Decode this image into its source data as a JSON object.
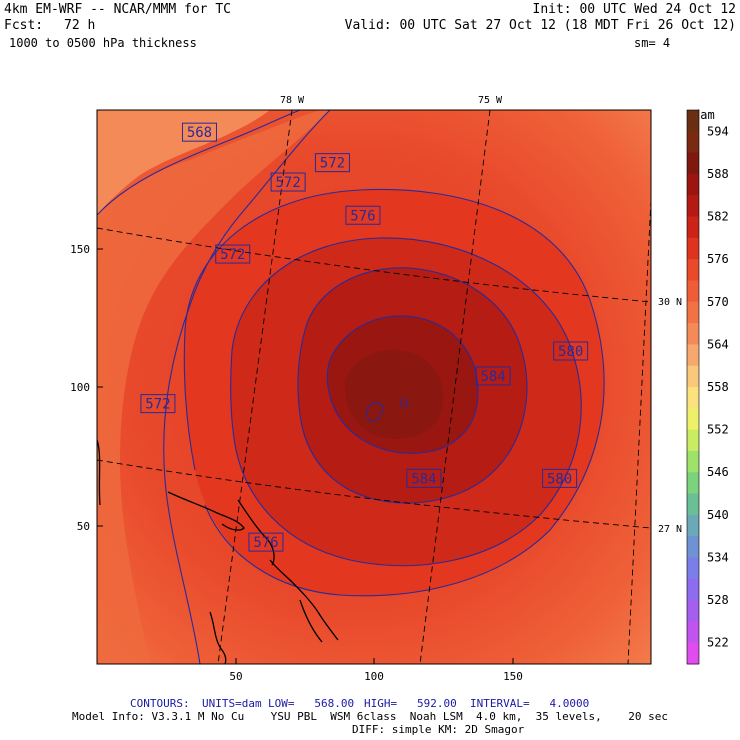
{
  "header": {
    "model": "4km EM-WRF -- NCAR/MMM for TC",
    "init": "Init: 00 UTC Wed 24 Oct 12",
    "fcst_label": "Fcst:",
    "fcst_value": "72 h",
    "valid": "Valid: 00 UTC Sat 27 Oct 12 (18 MDT Fri 26 Oct 12)",
    "field": "1000 to 0500 hPa thickness",
    "smoothing": "sm= 4"
  },
  "footer": {
    "contours_label": "CONTOURS:",
    "units": "UNITS=dam",
    "low": "LOW=   568.00",
    "high": "HIGH=   592.00",
    "interval": "INTERVAL=   4.0000",
    "model_info_line1": "Model Info: V3.3.1 M No Cu    YSU PBL  WSM 6class  Noah LSM  4.0 km,  35 levels,    20 sec",
    "model_info_line2": "DIFF: simple KM: 2D Smagor"
  },
  "colors": {
    "contour_line": "#2a2a9a",
    "graticule": "#000000",
    "coast": "#000000"
  },
  "chart_data": {
    "type": "heatmap",
    "title": "1000 to 0500 hPa thickness",
    "units": "dam",
    "x_ticks": [
      50,
      100,
      150
    ],
    "y_ticks": [
      50,
      100,
      150
    ],
    "xlim": [
      0,
      200
    ],
    "ylim": [
      0,
      200
    ],
    "longitude_labels": [
      "78 W",
      "75 W"
    ],
    "latitude_labels": [
      "30 N",
      "27 N"
    ],
    "contours": {
      "low": 568,
      "high": 592,
      "interval": 4,
      "levels": [
        568,
        572,
        576,
        580,
        584,
        588,
        592
      ]
    },
    "contour_labels": [
      {
        "text": "568",
        "x": 37,
        "y": 192
      },
      {
        "text": "572",
        "x": 85,
        "y": 181
      },
      {
        "text": "572",
        "x": 69,
        "y": 174
      },
      {
        "text": "576",
        "x": 96,
        "y": 162
      },
      {
        "text": "572",
        "x": 49,
        "y": 148
      },
      {
        "text": "572",
        "x": 22,
        "y": 94
      },
      {
        "text": "580",
        "x": 171,
        "y": 113
      },
      {
        "text": "584",
        "x": 143,
        "y": 104
      },
      {
        "text": "584",
        "x": 118,
        "y": 67
      },
      {
        "text": "580",
        "x": 167,
        "y": 67
      },
      {
        "text": "576",
        "x": 61,
        "y": 44
      }
    ],
    "colorbar": {
      "unit_label": "dam",
      "labels": [
        "594",
        "588",
        "582",
        "576",
        "570",
        "564",
        "558",
        "552",
        "546",
        "540",
        "534",
        "528",
        "522"
      ],
      "stops": [
        {
          "value": 597,
          "color": "#6a2f12"
        },
        {
          "value": 594,
          "color": "#7a2a10"
        },
        {
          "value": 591,
          "color": "#7f1910"
        },
        {
          "value": 588,
          "color": "#9c1510"
        },
        {
          "value": 585,
          "color": "#b31a14"
        },
        {
          "value": 582,
          "color": "#cc2318"
        },
        {
          "value": 579,
          "color": "#de331e"
        },
        {
          "value": 576,
          "color": "#e84a2a"
        },
        {
          "value": 573,
          "color": "#ee5d37"
        },
        {
          "value": 570,
          "color": "#f17344"
        },
        {
          "value": 567,
          "color": "#f48a58"
        },
        {
          "value": 564,
          "color": "#f7a86f"
        },
        {
          "value": 561,
          "color": "#f9c87a"
        },
        {
          "value": 558,
          "color": "#fbe27c"
        },
        {
          "value": 555,
          "color": "#eff06a"
        },
        {
          "value": 552,
          "color": "#c9ec62"
        },
        {
          "value": 549,
          "color": "#9ee26a"
        },
        {
          "value": 546,
          "color": "#7dd27c"
        },
        {
          "value": 543,
          "color": "#6bbf97"
        },
        {
          "value": 540,
          "color": "#6aa9b5"
        },
        {
          "value": 537,
          "color": "#6f93d2"
        },
        {
          "value": 534,
          "color": "#7b7ee8"
        },
        {
          "value": 531,
          "color": "#8e6cf0"
        },
        {
          "value": 528,
          "color": "#a45ef0"
        },
        {
          "value": 525,
          "color": "#c154ef"
        },
        {
          "value": 522,
          "color": "#e04cee"
        }
      ]
    }
  }
}
